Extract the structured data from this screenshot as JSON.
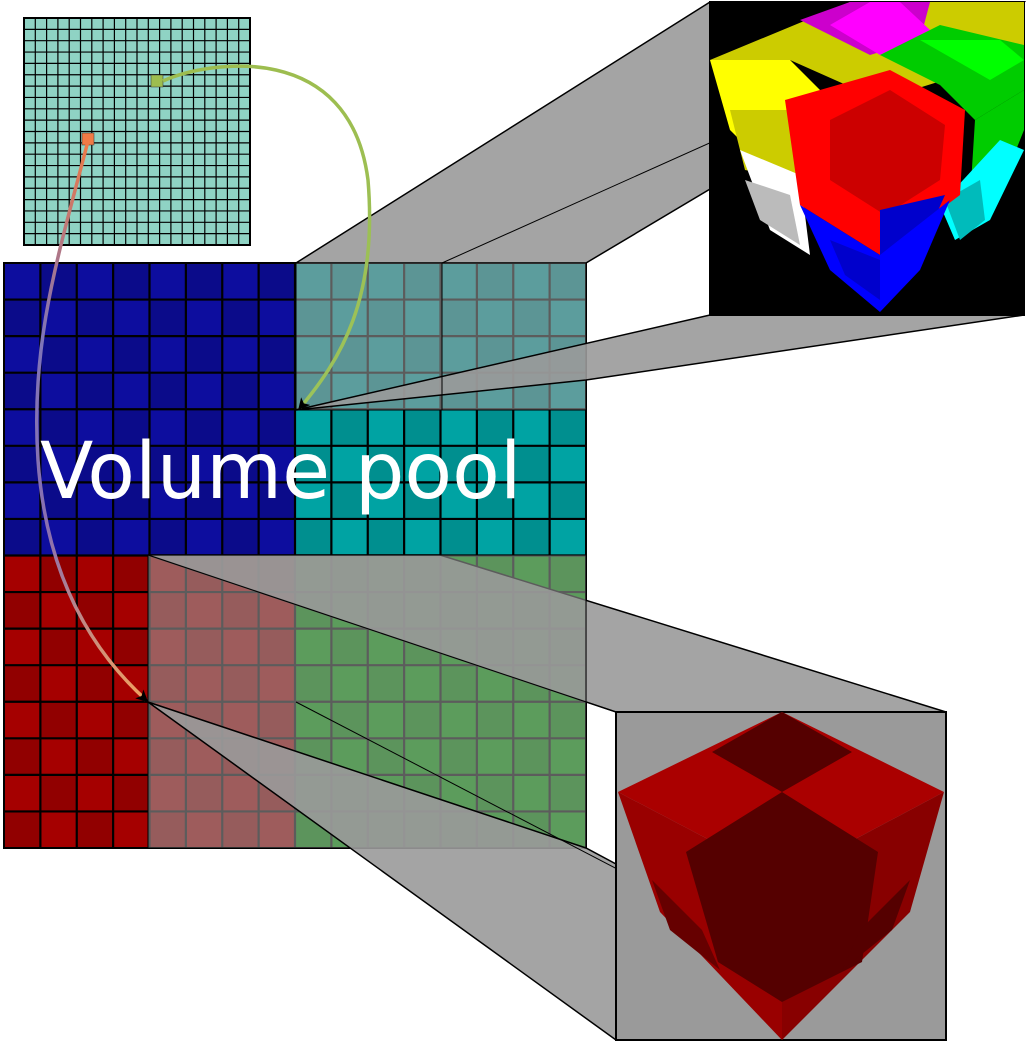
{
  "pool_label": "Volume pool",
  "colors": {
    "page_table_fill": "#8fd3c4",
    "page_table_highlight_a": "#9dbd4f",
    "page_table_highlight_b": "#f07a45",
    "quad_blue": "#0d0d9e",
    "quad_cyan": "#00a3a3",
    "quad_red": "#a50000",
    "quad_green": "#00a000",
    "projection_gray": "#9a9a9a",
    "cube_background": "#000000",
    "arrow_green": "#9cc35a",
    "arrow_orange": "#f0a060",
    "arrow_blue": "#6a5fb4"
  },
  "icons": {
    "multicolor_cube": "multicolor-voxel-cube-icon",
    "red_cube": "red-voxel-cube-icon"
  }
}
